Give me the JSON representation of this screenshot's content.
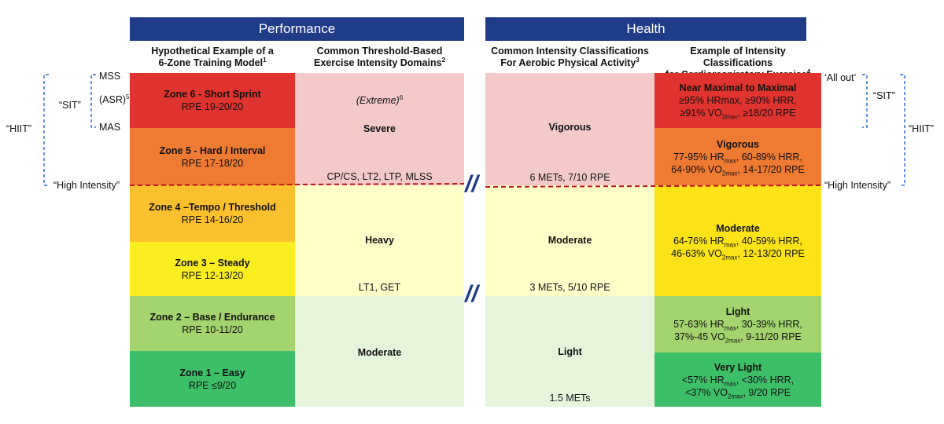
{
  "banners": {
    "performance": "Performance",
    "health": "Health"
  },
  "headers": {
    "col1": {
      "line1": "Hypothetical Example of a",
      "line2": "6-Zone Training Model",
      "sup": "1"
    },
    "col2": {
      "line1": "Common Threshold-Based",
      "line2": "Exercise Intensity Domains",
      "sup": "2"
    },
    "col3": {
      "line1": "Common Intensity Classifications",
      "line2": "For Aerobic Physical Activity",
      "sup": "3"
    },
    "col4": {
      "line1": "Example of Intensity Classifications",
      "line2": "for Cardiorespiratory Exercise",
      "sup": "4"
    }
  },
  "zones": [
    {
      "title": "Zone 6 - Short Sprint",
      "rpe": "RPE 19-20/20",
      "color": "#e0322f"
    },
    {
      "title": "Zone 5 - Hard / Interval",
      "rpe": "RPE  17-18/20",
      "color": "#ef7a32"
    },
    {
      "title": "Zone 4 –Tempo / Threshold",
      "rpe": "RPE 14-16/20",
      "color": "#fbc02d"
    },
    {
      "title": "Zone 3 – Steady",
      "rpe": "RPE 12-13/20",
      "color": "#fbee20"
    },
    {
      "title": "Zone 2 – Base / Endurance",
      "rpe": "RPE  10-11/20",
      "color": "#a3d46e"
    },
    {
      "title": "Zone 1 –  Easy",
      "rpe": "RPE ≤9/20",
      "color": "#3dbf6a"
    }
  ],
  "domains": {
    "extreme": "(Extreme)",
    "extreme_sup": "6",
    "severe": "Severe",
    "severe_thresholds": "CP/CS, LT2, LTP, MLSS",
    "heavy": "Heavy",
    "heavy_thresholds": "LT1, GET",
    "moderate": "Moderate"
  },
  "aerobic": {
    "vigorous": "Vigorous",
    "vigorous_note": "6 METs, 7/10 RPE",
    "moderate": "Moderate",
    "moderate_note": "3 METs, 5/10 RPE",
    "light": "Light",
    "light_note": "1.5 METs"
  },
  "cardio": {
    "near_max": {
      "title": "Near Maximal to Maximal",
      "l1": "≥95% HRmax, ≥90% HRR,",
      "l2a": "≥91% VO",
      "l2sub": "2max",
      "l2b": ", ≥18/20 RPE"
    },
    "vigorous": {
      "title": "Vigorous",
      "l1a": "77-95% HR",
      "l1sub": "max",
      "l1b": ", 60-89% HRR,",
      "l2a": "64-90% VO",
      "l2sub": "2max",
      "l2b": ", 14-17/20 RPE"
    },
    "moderate": {
      "title": "Moderate",
      "l1a": "64-76% HR",
      "l1sub": "max",
      "l1b": ", 40-59% HRR,",
      "l2a": "46-63% VO",
      "l2sub": "2max",
      "l2b": ", 12-13/20 RPE"
    },
    "light": {
      "title": "Light",
      "l1a": "57-63% HR",
      "l1sub": "max",
      "l1b": ", 30-39% HRR,",
      "l2a": "37%-45 VO",
      "l2sub": "2max",
      "l2b": ", 9-11/20 RPE"
    },
    "very_light": {
      "title": "Very Light",
      "l1a": "<57% HR",
      "l1sub": "max",
      "l1b": ", <30% HRR,",
      "l2a": "<37% VO",
      "l2sub": "2max",
      "l2b": ", 9/20 RPE"
    }
  },
  "left_labels": {
    "mss": "MSS",
    "asr": "(ASR)",
    "asr_sup": "5",
    "mas": "MAS",
    "sit": "“SIT”",
    "hiit": "“HIIT”",
    "high_intensity": "“High Intensity”"
  },
  "right_labels": {
    "all_out": "‘All out’",
    "sit": "“SIT”",
    "hiit": "“HIIT”",
    "high_intensity": "“High Intensity”"
  },
  "slashes": "//",
  "colors": {
    "banner": "#1f3c88",
    "severe_bg": "#f4c9ca",
    "heavy_bg": "#ffffc8",
    "moderate_bg": "#e6f4dc",
    "dashed_line": "#c0141c",
    "bracket": "#3b6fd4"
  }
}
